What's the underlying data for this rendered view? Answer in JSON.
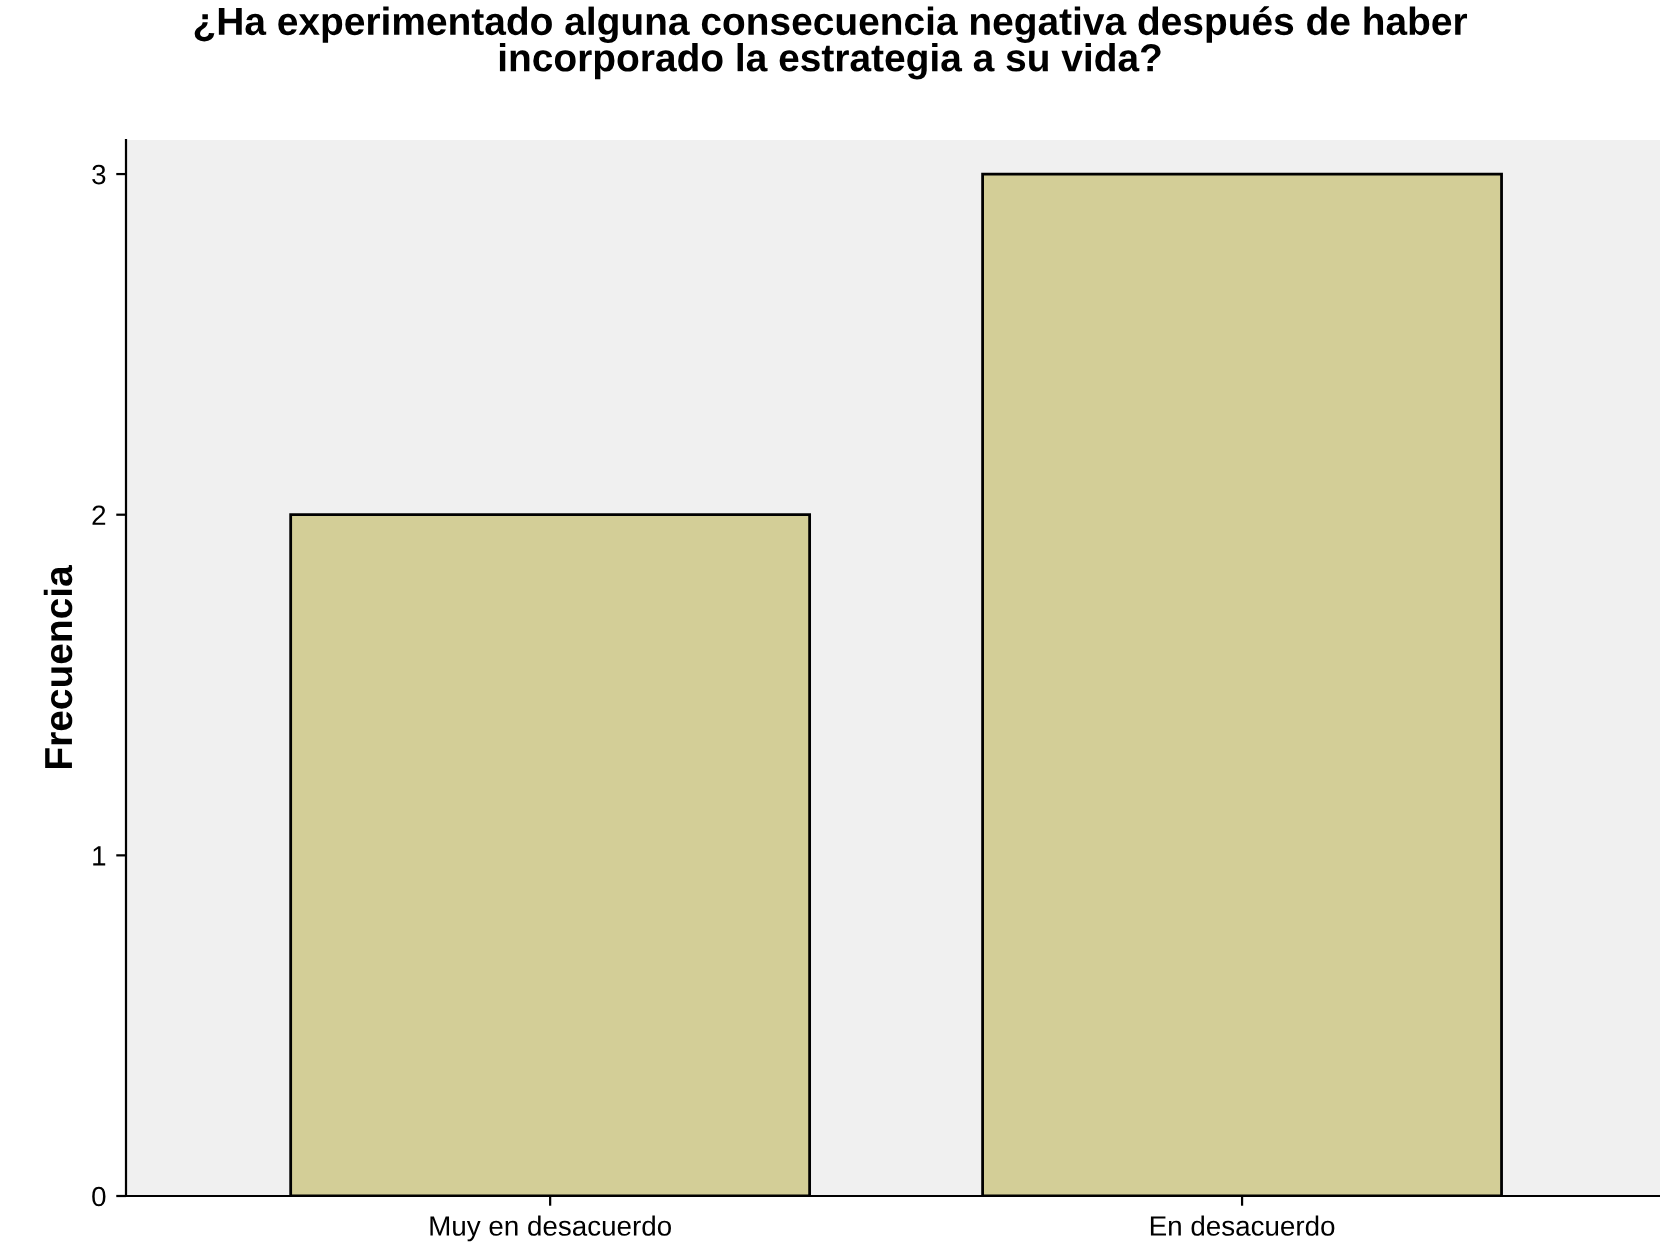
{
  "chart_data": {
    "type": "bar",
    "title": "¿Ha experimentado alguna consecuencia negativa después de haber\nincorporado la estrategia a su vida?",
    "ylabel": "Frecuencia",
    "categories": [
      "Muy en desacuerdo",
      "En desacuerdo"
    ],
    "values": [
      2,
      3
    ],
    "color": "#d3ce97",
    "ylim": [
      0,
      3.1
    ],
    "yticks": [
      0,
      1,
      2,
      3
    ],
    "grid": false
  }
}
